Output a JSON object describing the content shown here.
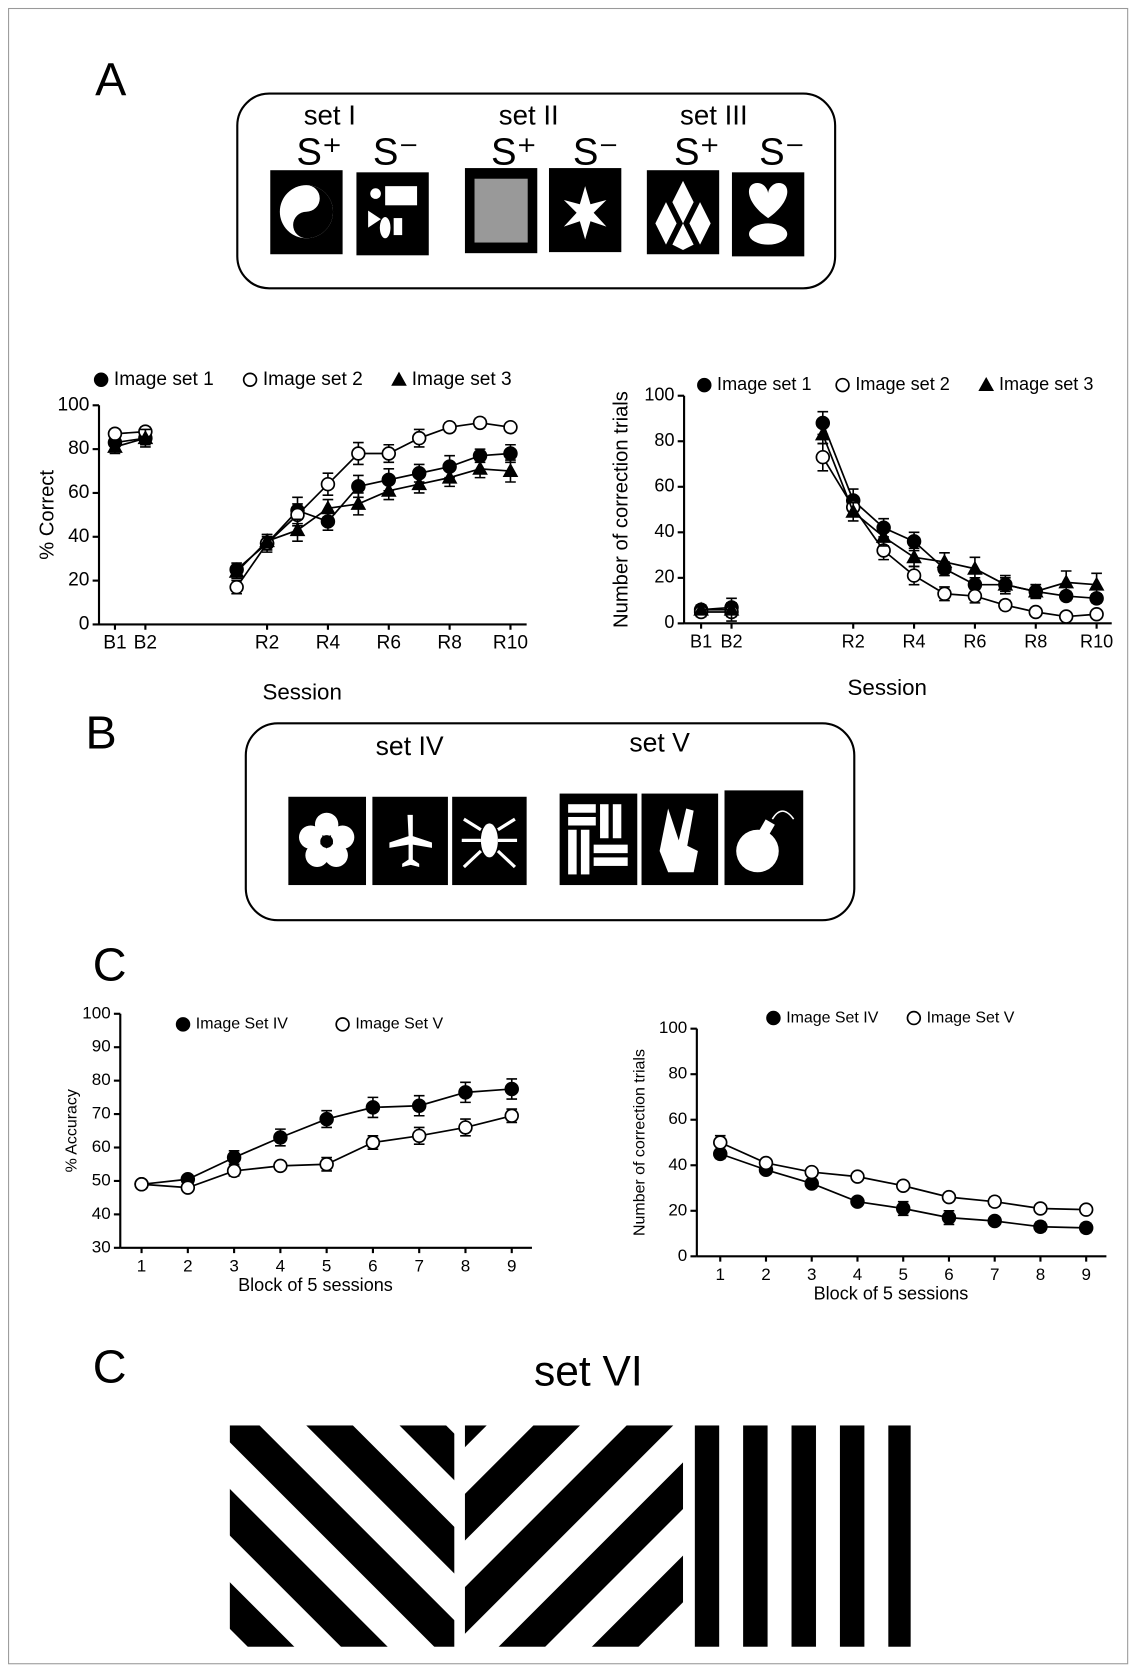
{
  "chart_data": [
    {
      "type": "line",
      "xlabel": "Session",
      "ylabel": "% Correct",
      "categories": [
        "B1",
        "B2",
        null,
        null,
        null,
        "R2",
        null,
        "R4",
        null,
        "R6",
        null,
        "R8",
        null,
        "R10"
      ],
      "ylim": [
        0,
        100
      ],
      "yticks": [
        0,
        20,
        40,
        60,
        80,
        100
      ],
      "series": [
        {
          "name": "Image set 1",
          "color": "#000000",
          "marker": "circle",
          "filled": true,
          "values": [
            83,
            85,
            null,
            null,
            25,
            37,
            52,
            47,
            63,
            66,
            69,
            72,
            77,
            78
          ],
          "errors": [
            3,
            3,
            null,
            null,
            3,
            4,
            6,
            4,
            5,
            5,
            4,
            5,
            3,
            4
          ]
        },
        {
          "name": "Image set 2",
          "color": "#000000",
          "marker": "circle",
          "filled": false,
          "values": [
            87,
            88,
            null,
            null,
            17,
            37,
            50,
            64,
            78,
            78,
            85,
            90,
            92,
            90
          ],
          "errors": [
            2,
            2,
            null,
            null,
            3,
            3,
            5,
            5,
            5,
            4,
            4,
            2,
            2,
            1
          ]
        },
        {
          "name": "Image set 3",
          "color": "#000000",
          "marker": "triangle",
          "filled": true,
          "values": [
            81,
            85,
            null,
            null,
            24,
            38,
            43,
            53,
            55,
            61,
            64,
            67,
            71,
            70
          ],
          "errors": [
            3,
            4,
            null,
            null,
            3,
            3,
            5,
            4,
            5,
            4,
            4,
            4,
            4,
            5
          ]
        }
      ]
    },
    {
      "type": "line",
      "xlabel": "Session",
      "ylabel": "Number of correction trials",
      "categories": [
        "B1",
        "B2",
        null,
        null,
        null,
        "R2",
        null,
        "R4",
        null,
        "R6",
        null,
        "R8",
        null,
        "R10"
      ],
      "ylim": [
        0,
        100
      ],
      "yticks": [
        0,
        20,
        40,
        60,
        80,
        100
      ],
      "series": [
        {
          "name": "Image set 1",
          "color": "#000000",
          "marker": "circle",
          "filled": true,
          "values": [
            6,
            7,
            null,
            null,
            88,
            54,
            42,
            36,
            24,
            17,
            17,
            14,
            12,
            11
          ],
          "errors": [
            2,
            2,
            null,
            null,
            5,
            5,
            4,
            4,
            3,
            3,
            3,
            3,
            2,
            2
          ]
        },
        {
          "name": "Image set 2",
          "color": "#000000",
          "marker": "circle",
          "filled": false,
          "values": [
            5,
            5,
            null,
            null,
            73,
            51,
            32,
            21,
            13,
            12,
            8,
            5,
            3,
            4
          ],
          "errors": [
            2,
            2,
            null,
            null,
            6,
            4,
            4,
            4,
            3,
            3,
            2,
            1,
            1,
            1
          ]
        },
        {
          "name": "Image set 3",
          "color": "#000000",
          "marker": "triangle",
          "filled": true,
          "values": [
            6,
            6,
            null,
            null,
            83,
            49,
            38,
            29,
            27,
            24,
            17,
            14,
            18,
            17
          ],
          "errors": [
            2,
            5,
            null,
            null,
            4,
            4,
            4,
            4,
            4,
            5,
            4,
            3,
            5,
            5
          ]
        }
      ]
    },
    {
      "type": "line",
      "xlabel": "Block of 5 sessions",
      "ylabel": "% Accuracy",
      "categories": [
        "1",
        "2",
        "3",
        "4",
        "5",
        "6",
        "7",
        "8",
        "9"
      ],
      "ylim": [
        30,
        100
      ],
      "yticks": [
        30,
        40,
        50,
        60,
        70,
        80,
        90,
        100
      ],
      "series": [
        {
          "name": "Image Set IV",
          "color": "#000000",
          "marker": "circle",
          "filled": true,
          "values": [
            49,
            50.5,
            57,
            63,
            68.5,
            72,
            72.5,
            76.5,
            77.5
          ],
          "errors": [
            1,
            1,
            2,
            2.5,
            2.5,
            3,
            3,
            3,
            3
          ]
        },
        {
          "name": "Image Set V",
          "color": "#000000",
          "marker": "circle",
          "filled": false,
          "values": [
            49,
            48,
            53,
            54.5,
            55,
            61.5,
            63.5,
            66,
            69.5
          ],
          "errors": [
            1,
            1,
            1.5,
            1,
            2,
            2,
            2.5,
            2.5,
            2
          ]
        }
      ]
    },
    {
      "type": "line",
      "xlabel": "Block of 5 sessions",
      "ylabel": "Number of correction trials",
      "categories": [
        "1",
        "2",
        "3",
        "4",
        "5",
        "6",
        "7",
        "8",
        "9"
      ],
      "ylim": [
        0,
        100
      ],
      "yticks": [
        0,
        20,
        40,
        60,
        80,
        100
      ],
      "series": [
        {
          "name": "Image Set IV",
          "color": "#000000",
          "marker": "circle",
          "filled": true,
          "values": [
            45,
            38,
            32,
            24,
            21,
            17,
            15.5,
            13,
            12.5
          ],
          "errors": [
            2,
            1,
            1,
            1,
            3,
            3,
            1,
            2,
            2
          ]
        },
        {
          "name": "Image Set V",
          "color": "#000000",
          "marker": "circle",
          "filled": false,
          "values": [
            50,
            41,
            37,
            35,
            31,
            26,
            24,
            21,
            20.5
          ],
          "errors": [
            3,
            1,
            1,
            1,
            1,
            1,
            2,
            1,
            1
          ]
        }
      ]
    }
  ],
  "panels": {
    "labels": [
      "A",
      "B",
      "C",
      "C"
    ],
    "sets_a": [
      {
        "name": "set I",
        "plus": "S⁺",
        "minus": "S⁻"
      },
      {
        "name": "set II",
        "plus": "S⁺",
        "minus": "S⁻"
      },
      {
        "name": "set III",
        "plus": "S⁺",
        "minus": "S⁻"
      }
    ],
    "sets_b": [
      "set IV",
      "set V"
    ],
    "set_vi": "set VI"
  }
}
